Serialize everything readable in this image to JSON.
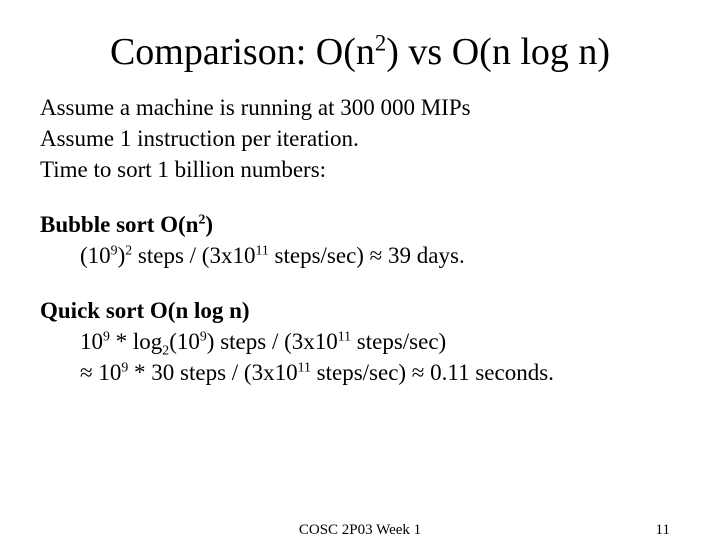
{
  "typography": {
    "font_family": "Times New Roman",
    "title_fontsize_pt": 38,
    "body_fontsize_pt": 23,
    "footer_fontsize_pt": 15,
    "text_color": "#000000",
    "background_color": "#ffffff"
  },
  "title": {
    "pre": "Comparison: O(n",
    "sup1": "2",
    "post": ") vs O(n log n)"
  },
  "intro": {
    "line1": "Assume a machine is running at 300 000 MIPs",
    "line2": "Assume 1 instruction per iteration.",
    "line3": "Time to sort 1 billion numbers:"
  },
  "bubble": {
    "head_pre": "Bubble sort O(n",
    "head_sup": "2",
    "head_post": ")",
    "l_a": "(10",
    "l_sup9a": "9",
    "l_b": ")",
    "l_sup2": "2",
    "l_c": " steps / (3x10",
    "l_sup11": "11",
    "l_d": " steps/sec) ≈ 39 days."
  },
  "quick": {
    "head": "Quick sort O(n log n)",
    "l1_a": "10",
    "l1_sup9": "9",
    "l1_b": " * log",
    "l1_sub2": "2",
    "l1_c": "(10",
    "l1_sup9b": "9",
    "l1_d": ") steps / (3x10",
    "l1_sup11": "11",
    "l1_e": " steps/sec)",
    "l2_a": "≈ 10",
    "l2_sup9": "9",
    "l2_b": " * 30 steps / (3x10",
    "l2_sup11": "11",
    "l2_c": " steps/sec) ≈ 0.11 seconds."
  },
  "footer": {
    "center": "COSC 2P03 Week 1",
    "page": "11"
  }
}
